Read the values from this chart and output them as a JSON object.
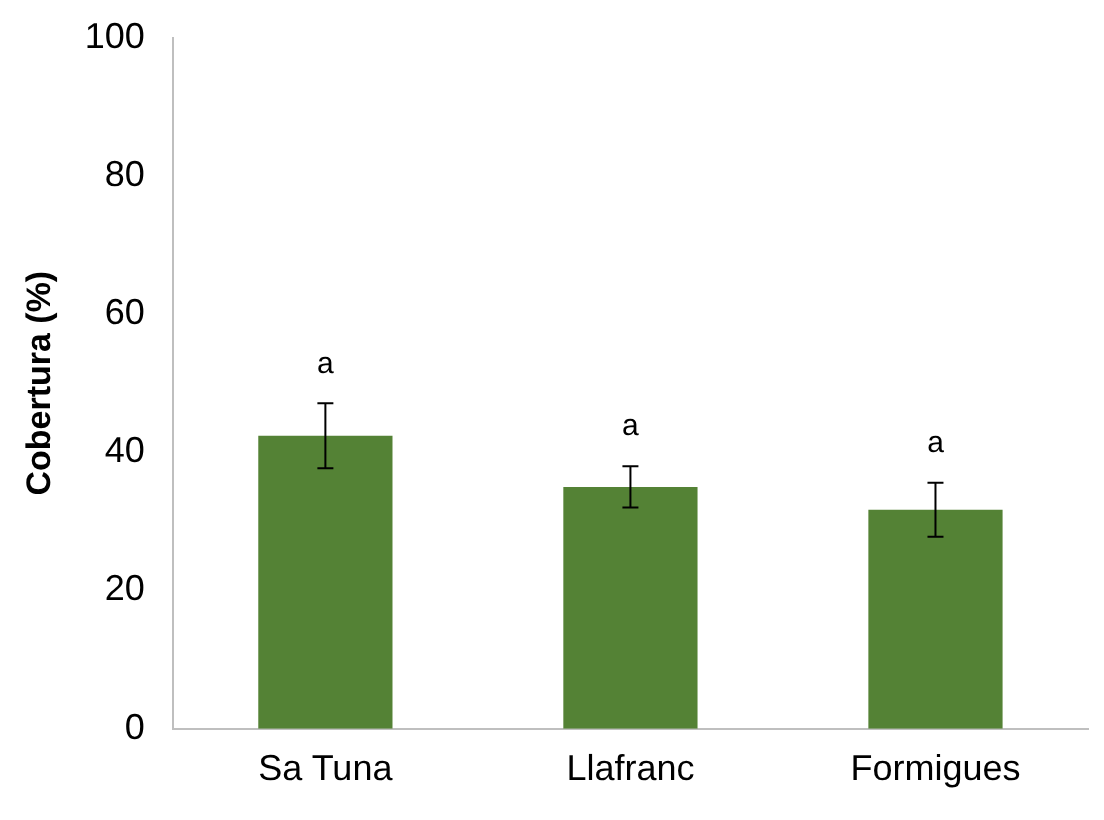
{
  "chart_data": {
    "type": "bar",
    "ylabel": "Cobertura (%)",
    "categories": [
      "Sa Tuna",
      "Llafranc",
      "Formigues"
    ],
    "values": [
      42.4,
      35.0,
      31.7
    ],
    "errors": [
      4.7,
      3.0,
      3.9
    ],
    "color": "#548235",
    "ylim": [
      0,
      100
    ],
    "yticks": [
      0,
      20,
      40,
      60,
      80,
      100
    ],
    "grid": false,
    "legend": false,
    "annotations": [
      "a",
      "a",
      "a"
    ]
  }
}
